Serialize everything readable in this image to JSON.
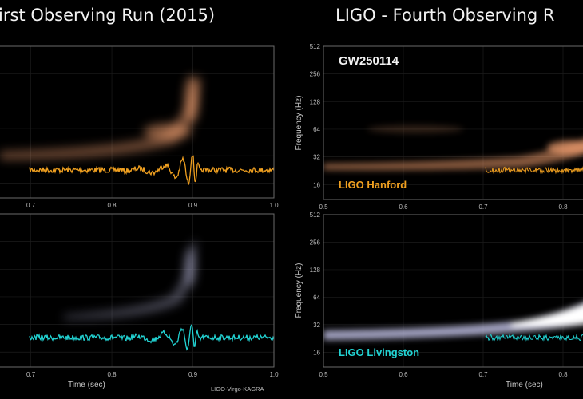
{
  "titles": {
    "left": "irst Observing Run (2015)",
    "right": "LIGO - Fourth Observing R"
  },
  "credit": "LIGO-Virgo-KAGRA",
  "colors": {
    "background": "#000000",
    "hanford_strain": "#f0a020",
    "livingston_strain": "#22d3d3",
    "hanford_spectrogram": "#f2a070",
    "livingston_spectrogram": "#c8c8ee",
    "frame": "#6a6a6a"
  },
  "chart_data": [
    {
      "type": "heatmap",
      "panel": "top-left",
      "detector_color": "orange",
      "xlim": [
        0.66,
        1.0
      ],
      "xticks": [
        "0.7",
        "0.8",
        "0.9",
        "1.0"
      ],
      "ylim": [
        11,
        512
      ],
      "yscale": "log2",
      "grid": true,
      "overlay": "strain waveform, chirp peaking near 0.9 s"
    },
    {
      "type": "heatmap",
      "panel": "bottom-left",
      "detector_color": "cyan",
      "xlim": [
        0.66,
        1.0
      ],
      "xticks": [
        "0.7",
        "0.8",
        "0.9",
        "1.0"
      ],
      "xlabel": "Time (sec)",
      "ylim": [
        11,
        512
      ],
      "yscale": "log2",
      "grid": true,
      "overlay": "strain waveform, chirp peaking near 0.9 s"
    },
    {
      "type": "heatmap",
      "panel": "top-right",
      "event_label": "GW250114",
      "detector_label": "LIGO Hanford",
      "xlim": [
        0.5,
        0.83
      ],
      "xticks": [
        "0.5",
        "0.6",
        "0.7",
        "0.8"
      ],
      "ylabel": "Frequency (Hz)",
      "yticks": [
        "512",
        "256",
        "128",
        "64",
        "32",
        "16"
      ],
      "ylim": [
        11,
        512
      ],
      "yscale": "log2",
      "grid": true
    },
    {
      "type": "heatmap",
      "panel": "bottom-right",
      "detector_label": "LIGO Livingston",
      "xlim": [
        0.5,
        0.83
      ],
      "xticks": [
        "0.5",
        "0.6",
        "0.7",
        "0.8"
      ],
      "xlabel": "Time (sec)",
      "ylabel": "Frequency (Hz)",
      "yticks": [
        "512",
        "256",
        "128",
        "64",
        "32",
        "16"
      ],
      "ylim": [
        11,
        512
      ],
      "yscale": "log2",
      "grid": true
    }
  ]
}
